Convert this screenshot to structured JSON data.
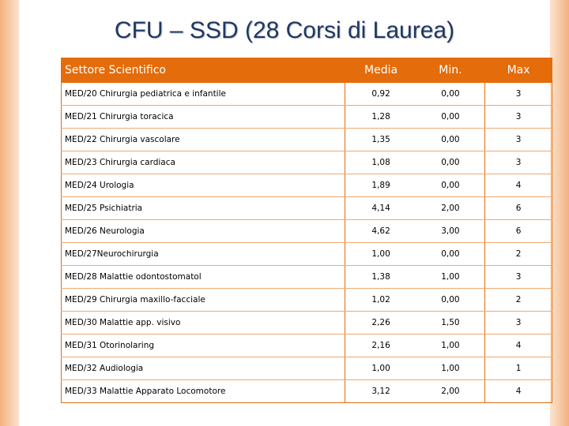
{
  "title": "CFU – SSD (28 Corsi di Laurea)",
  "colors": {
    "accent": "#e46c0a",
    "title": "#1f3864",
    "band": "#f3b27e"
  },
  "headers": [
    "Settore Scientifico",
    "Media",
    "Min.",
    "Max"
  ],
  "rows": [
    [
      "MED/20 Chirurgia pediatrica e infantile",
      "0,92",
      "0,00",
      "3"
    ],
    [
      "MED/21 Chirurgia toracica",
      "1,28",
      "0,00",
      "3"
    ],
    [
      "MED/22 Chirurgia vascolare",
      "1,35",
      "0,00",
      "3"
    ],
    [
      "MED/23 Chirurgia cardiaca",
      "1,08",
      "0,00",
      "3"
    ],
    [
      "MED/24 Urologia",
      "1,89",
      "0,00",
      "4"
    ],
    [
      "MED/25 Psichiatria",
      "4,14",
      "2,00",
      "6"
    ],
    [
      "MED/26 Neurologia",
      "4,62",
      "3,00",
      "6"
    ],
    [
      "MED/27Neurochirurgia",
      "1,00",
      "0,00",
      "2"
    ],
    [
      "MED/28 Malattie odontostomatol",
      "1,38",
      "1,00",
      "3"
    ],
    [
      "MED/29 Chirurgia maxillo-facciale",
      "1,02",
      "0,00",
      "2"
    ],
    [
      "MED/30 Malattie app. visivo",
      "2,26",
      "1,50",
      "3"
    ],
    [
      "MED/31 Otorinolaring",
      "2,16",
      "1,00",
      "4"
    ],
    [
      "MED/32 Audiologia",
      "1,00",
      "1,00",
      "1"
    ],
    [
      "MED/33 Malattie Apparato Locomotore",
      "3,12",
      "2,00",
      "4"
    ]
  ]
}
